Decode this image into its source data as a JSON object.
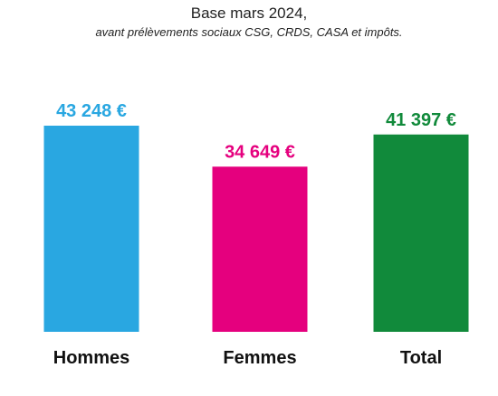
{
  "chart_data": {
    "type": "bar",
    "title": "Base mars 2024,",
    "subtitle": "avant prélèvements sociaux CSG, CRDS, CASA et impôts.",
    "categories": [
      "Hommes",
      "Femmes",
      "Total"
    ],
    "values": [
      43248,
      34649,
      41397
    ],
    "value_labels": [
      "43 248 €",
      "34 649 €",
      "41 397 €"
    ],
    "colors": [
      "#29a7e1",
      "#e5007e",
      "#118a3b"
    ],
    "grid": false,
    "legend": "none"
  }
}
